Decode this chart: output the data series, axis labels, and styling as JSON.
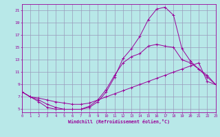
{
  "xlabel": "Windchill (Refroidissement éolien,°C)",
  "background_color": "#b8e8e8",
  "grid_color": "#9999bb",
  "line_color": "#990099",
  "xlim": [
    0,
    23
  ],
  "ylim": [
    4.5,
    22.0
  ],
  "xticks": [
    0,
    1,
    2,
    3,
    4,
    5,
    6,
    7,
    8,
    9,
    10,
    11,
    12,
    13,
    14,
    15,
    16,
    17,
    18,
    19,
    20,
    21,
    22,
    23
  ],
  "yticks": [
    5,
    7,
    9,
    11,
    13,
    15,
    17,
    19,
    21
  ],
  "curve_top_x": [
    0,
    1,
    2,
    3,
    4,
    5,
    6,
    7,
    8,
    9,
    10,
    11,
    12,
    13,
    14,
    15,
    16,
    17,
    18,
    19,
    20,
    21,
    22,
    23
  ],
  "curve_top_y": [
    7.8,
    7.0,
    6.2,
    5.3,
    5.0,
    5.0,
    5.0,
    5.0,
    5.3,
    6.2,
    7.8,
    10.2,
    13.2,
    14.8,
    16.8,
    19.5,
    21.2,
    21.5,
    20.2,
    14.8,
    12.8,
    11.5,
    10.2,
    9.0
  ],
  "curve_mid_x": [
    0,
    1,
    2,
    3,
    4,
    5,
    6,
    7,
    8,
    9,
    10,
    11,
    12,
    13,
    14,
    15,
    16,
    17,
    18,
    19,
    20,
    21,
    22,
    23
  ],
  "curve_mid_y": [
    7.8,
    7.0,
    6.5,
    5.8,
    5.3,
    5.0,
    5.0,
    5.0,
    5.5,
    6.5,
    8.2,
    10.5,
    12.5,
    13.5,
    14.0,
    15.2,
    15.5,
    15.2,
    15.0,
    13.0,
    12.5,
    11.5,
    10.5,
    9.0
  ],
  "curve_bot_x": [
    0,
    1,
    2,
    3,
    4,
    5,
    6,
    7,
    8,
    9,
    10,
    11,
    12,
    13,
    14,
    15,
    16,
    17,
    18,
    19,
    20,
    21,
    22,
    23
  ],
  "curve_bot_y": [
    7.8,
    7.0,
    6.8,
    6.5,
    6.2,
    6.0,
    5.8,
    5.8,
    6.0,
    6.5,
    7.0,
    7.5,
    8.0,
    8.5,
    9.0,
    9.5,
    10.0,
    10.5,
    11.0,
    11.5,
    12.0,
    12.5,
    9.5,
    9.0
  ]
}
